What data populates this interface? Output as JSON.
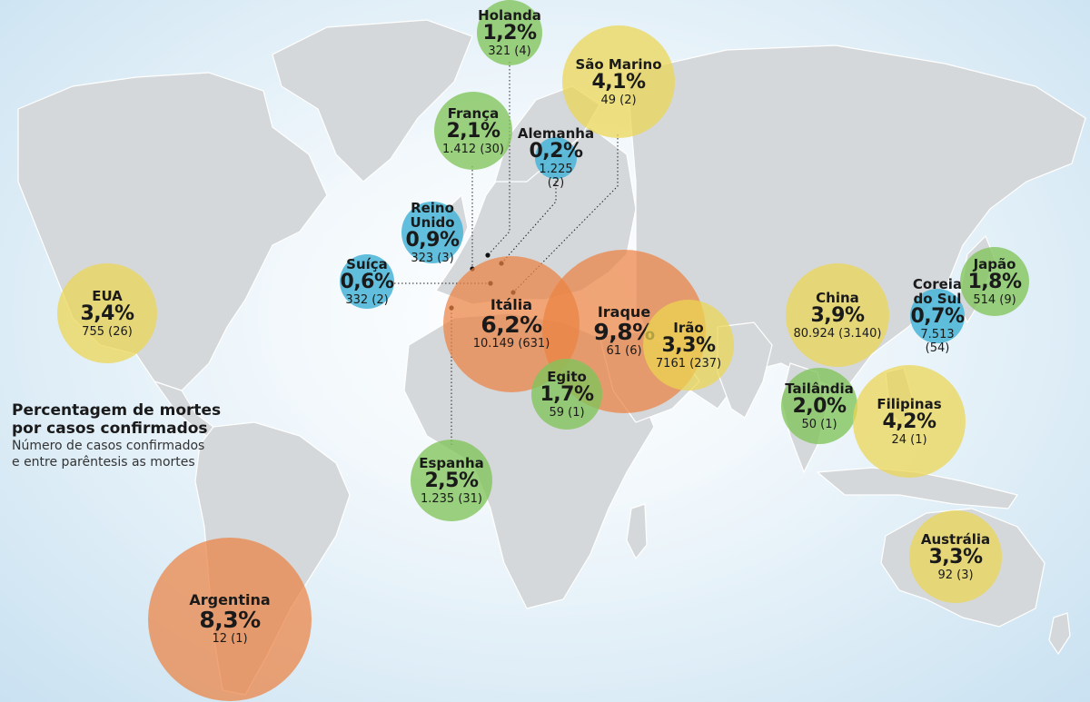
{
  "legend": {
    "title_line1": "Percentagem de mortes",
    "title_line2": "por casos confirmados",
    "subtitle_line1": "Número de casos confirmados",
    "subtitle_line2": "e entre parêntesis as mortes"
  },
  "colors": {
    "green": "#80c45a",
    "yellow": "#ecd650",
    "blue": "#46b4d7",
    "orange": "#ec8242",
    "land": "#d5d8da",
    "ocean": "#c9e1f1"
  },
  "bubbles": {
    "holanda": {
      "name": "Holanda",
      "pct": "1,2%",
      "cases": "321 (4)"
    },
    "sao_marino": {
      "name": "São Marino",
      "pct": "4,1%",
      "cases": "49 (2)"
    },
    "franca": {
      "name": "França",
      "pct": "2,1%",
      "cases": "1.412 (30)"
    },
    "alemanha": {
      "name": "Alemanha",
      "pct": "0,2%",
      "cases": "1.225 (2)"
    },
    "reino_unido": {
      "name_line1": "Reino",
      "name_line2": "Unido",
      "pct": "0,9%",
      "cases": "323 (3)"
    },
    "suica": {
      "name": "Suíça",
      "pct": "0,6%",
      "cases": "332 (2)"
    },
    "eua": {
      "name": "EUA",
      "pct": "3,4%",
      "cases": "755 (26)"
    },
    "italia": {
      "name": "Itália",
      "pct": "6,2%",
      "cases": "10.149 (631)"
    },
    "iraque": {
      "name": "Iraque",
      "pct": "9,8%",
      "cases": "61 (6)"
    },
    "irao": {
      "name": "Irão",
      "pct": "3,3%",
      "cases": "7161 (237)"
    },
    "egito": {
      "name": "Egito",
      "pct": "1,7%",
      "cases": "59 (1)"
    },
    "espanha": {
      "name": "Espanha",
      "pct": "2,5%",
      "cases": "1.235 (31)"
    },
    "china": {
      "name": "China",
      "pct": "3,9%",
      "cases": "80.924 (3.140)"
    },
    "coreia": {
      "name_line1": "Coreia",
      "name_line2": "do Sul",
      "pct": "0,7%",
      "cases": "7.513 (54)"
    },
    "japao": {
      "name": "Japão",
      "pct": "1,8%",
      "cases": "514 (9)"
    },
    "tailandia": {
      "name": "Tailândia",
      "pct": "2,0%",
      "cases": "50 (1)"
    },
    "filipinas": {
      "name": "Filipinas",
      "pct": "4,2%",
      "cases": "24 (1)"
    },
    "australia": {
      "name": "Austrália",
      "pct": "3,3%",
      "cases": "92 (3)"
    },
    "argentina": {
      "name": "Argentina",
      "pct": "8,3%",
      "cases": "12 (1)"
    }
  }
}
